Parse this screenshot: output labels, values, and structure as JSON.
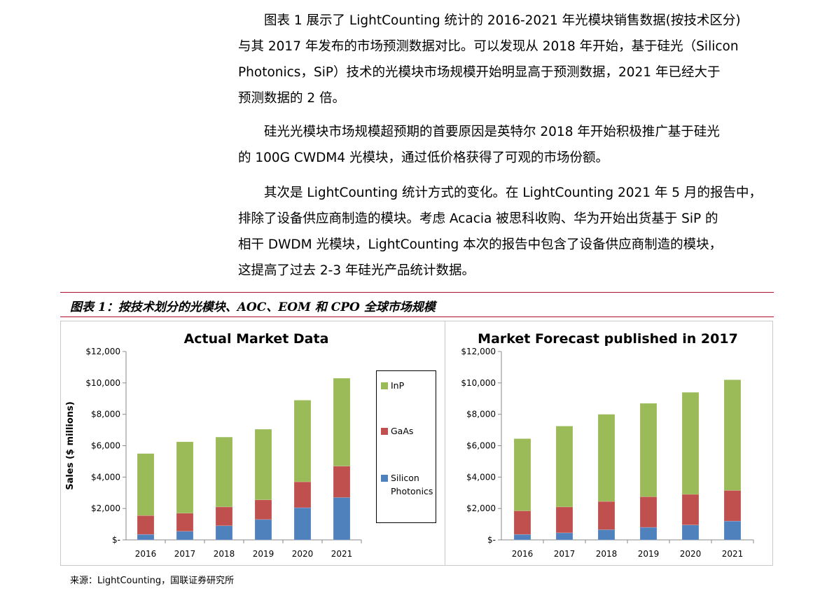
{
  "paragraphs": [
    {
      "lines": [
        "　　图表 1 展示了 LightCounting 统计的 2016-2021 年光模块销售数据(按技术区分)",
        "与其 2017 年发布的市场预测数据对比。可以发现从 2018 年开始，基于硅光（Silicon",
        "Photonics，SiP）技术的光模块市场规模开始明显高于预测数据，2021 年已经大于",
        "预测数据的 2 倍。"
      ]
    },
    {
      "lines": [
        "　　硅光光模块市场规模超预期的首要原因是英特尔 2018 年开始积极推广基于硅光",
        "的 100G CWDM4 光模块，通过低价格获得了可观的市场份额。"
      ]
    },
    {
      "lines": [
        "　　其次是 LightCounting 统计方式的变化。在 LightCounting 2021 年 5 月的报告中，",
        "排除了设备供应商制造的模块。考虑 Acacia 被思科收购、华为开始出货基于 SiP 的",
        "相干 DWDM 光模块，LightCounting 本次的报告中包含了设备供应商制造的模块，",
        "这提高了过去 2-3 年硅光产品统计数据。"
      ]
    }
  ],
  "figure_title": "图表 1：按技术划分的光模块、AOC、EOM 和 CPO 全球市场规模",
  "source": "来源：LightCounting，国联证券研究所",
  "colors": {
    "InP": "#9bbb59",
    "GaAs": "#c0504d",
    "SiP": "#4f81bd",
    "redline": "#b0112a"
  },
  "legend": {
    "inp": "InP",
    "gaas": "GaAs",
    "sip1": "Silicon",
    "sip2": "Photonics"
  },
  "chart_data": [
    {
      "type": "bar",
      "stacked": true,
      "title": "Actual Market Data",
      "ylabel": "Sales ($ millions)",
      "xlabel": "",
      "ylim": [
        0,
        12000
      ],
      "yticks": [
        "$-",
        "$2,000",
        "$4,000",
        "$6,000",
        "$8,000",
        "$10,000",
        "$12,000"
      ],
      "categories": [
        "2016",
        "2017",
        "2018",
        "2019",
        "2020",
        "2021"
      ],
      "series": [
        {
          "name": "Silicon Photonics",
          "values": [
            350,
            550,
            900,
            1300,
            2050,
            2700
          ]
        },
        {
          "name": "GaAs",
          "values": [
            1200,
            1150,
            1200,
            1250,
            1650,
            2000
          ]
        },
        {
          "name": "InP",
          "values": [
            3950,
            4550,
            4450,
            4500,
            5200,
            5600
          ]
        }
      ],
      "legend_position": "right",
      "grid": false
    },
    {
      "type": "bar",
      "stacked": true,
      "title": "Market Forecast published in 2017",
      "ylabel": "",
      "xlabel": "",
      "ylim": [
        0,
        12000
      ],
      "yticks": [
        "$-",
        "$2,000",
        "$4,000",
        "$6,000",
        "$8,000",
        "$10,000",
        "$12,000"
      ],
      "categories": [
        "2016",
        "2017",
        "2018",
        "2019",
        "2020",
        "2021"
      ],
      "series": [
        {
          "name": "Silicon Photonics",
          "values": [
            350,
            450,
            650,
            800,
            950,
            1200
          ]
        },
        {
          "name": "GaAs",
          "values": [
            1500,
            1650,
            1800,
            1950,
            1950,
            1950
          ]
        },
        {
          "name": "InP",
          "values": [
            4600,
            5150,
            5550,
            5950,
            6500,
            7050
          ]
        }
      ],
      "grid": false
    }
  ]
}
